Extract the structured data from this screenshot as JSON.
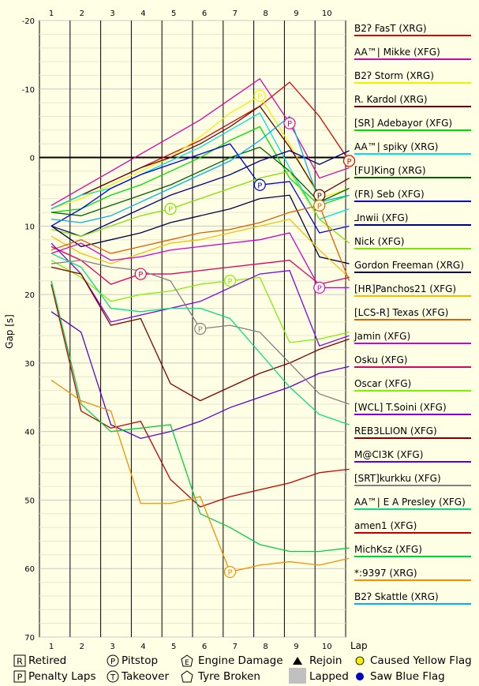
{
  "chart_data": {
    "type": "line",
    "ylabel": "Gap [s]",
    "xlabel": "Lap",
    "y_reversed": true,
    "ylim": [
      -20,
      70
    ],
    "y_ticks": [
      "-20",
      "-10",
      "0",
      "10",
      "20",
      "30",
      "40",
      "50",
      "60",
      "70"
    ],
    "x_ticks": [
      "1",
      "2",
      "3",
      "4",
      "5",
      "6",
      "7",
      "8",
      "9",
      "10"
    ],
    "grid": true,
    "legend_position": "right",
    "series": [
      {
        "name": "B2ʔ FasT (XRG)",
        "color": "#e00000",
        "values": [
          7.5,
          5.5,
          3.5,
          1.5,
          -0.5,
          -2.5,
          -5.0,
          -7.5,
          -11.0,
          -6.0,
          0.5
        ],
        "pitstop_laps": [
          10
        ]
      },
      {
        "name": "AA™| Mikke (XFG)",
        "color": "#e000a0",
        "values": [
          7.0,
          4.5,
          2.0,
          -0.5,
          -3.0,
          -5.5,
          -8.5,
          -11.5,
          -5.0,
          3.0,
          1.5
        ],
        "pitstop_laps": [
          8
        ]
      },
      {
        "name": "B2ʔ Storm (XRG)",
        "color": "#f0f000",
        "values": [
          7.5,
          6.0,
          4.0,
          2.0,
          0.0,
          -3.0,
          -6.5,
          -9.0,
          -2.0,
          6.0,
          4.5
        ],
        "pitstop_laps": [
          7
        ]
      },
      {
        "name": "R. Kardol (XRG)",
        "color": "#600000",
        "values": [
          7.5,
          5.5,
          3.5,
          1.5,
          0.0,
          -2.0,
          -4.5,
          -7.5,
          -1.5,
          5.5,
          3.0
        ],
        "pitstop_laps": [
          9
        ]
      },
      {
        "name": "[SR] Adebayor (XFG)",
        "color": "#00e000",
        "values": [
          8.0,
          7.5,
          5.5,
          4.0,
          2.0,
          0.0,
          -2.5,
          -4.5,
          3.0,
          7.0,
          5.5
        ],
        "pitstop_laps": []
      },
      {
        "name": "AA™| spiky (XRG)",
        "color": "#00e0e0",
        "values": [
          7.5,
          5.5,
          4.5,
          2.5,
          0.5,
          -1.5,
          -4.0,
          -6.5,
          1.5,
          9.0,
          7.5
        ],
        "pitstop_laps": []
      },
      {
        "name": "[FU]King (XRG)",
        "color": "#006000",
        "values": [
          8.0,
          8.5,
          7.0,
          5.5,
          4.0,
          2.0,
          0.0,
          -1.5,
          2.0,
          6.5,
          4.5
        ],
        "pitstop_laps": []
      },
      {
        "name": "(FR) Seb (XFG)",
        "color": "#0000e0",
        "values": [
          10.0,
          7.5,
          4.5,
          2.5,
          1.0,
          -0.5,
          -2.0,
          4.0,
          3.5,
          11.0,
          10.0
        ],
        "pitstop_laps": [
          7
        ]
      },
      {
        "name": "⅃nwii (XFG)",
        "color": "#000080",
        "values": [
          10.0,
          11.5,
          9.5,
          7.5,
          5.5,
          4.0,
          2.5,
          0.5,
          -1.0,
          1.0,
          -1.0
        ],
        "pitstop_laps": []
      },
      {
        "name": "Nick (XFG)",
        "color": "#80e000",
        "values": [
          10.5,
          11.5,
          10.0,
          8.5,
          7.5,
          6.0,
          4.5,
          3.0,
          2.0,
          9.0,
          12.5
        ],
        "pitstop_laps": [
          4
        ]
      },
      {
        "name": "Gordon Freeman (XRG)",
        "color": "#000040",
        "values": [
          10.0,
          13.0,
          12.0,
          11.0,
          9.5,
          8.5,
          7.5,
          6.0,
          5.5,
          14.5,
          15.5
        ],
        "pitstop_laps": []
      },
      {
        "name": "[HR]Panchos21 (XFG)",
        "color": "#f0c000",
        "values": [
          11.5,
          14.0,
          15.5,
          14.0,
          12.5,
          12.0,
          11.0,
          10.0,
          9.0,
          13.5,
          17.5
        ],
        "pitstop_laps": []
      },
      {
        "name": "[LCS-R] Texas (XFG)",
        "color": "#e06000",
        "values": [
          13.5,
          12.0,
          14.0,
          13.0,
          12.0,
          11.0,
          10.5,
          9.5,
          8.0,
          7.0,
          18.0
        ],
        "pitstop_laps": [
          9
        ]
      },
      {
        "name": "Jamin (XFG)",
        "color": "#d000d0",
        "values": [
          14.0,
          12.5,
          15.0,
          14.5,
          13.5,
          13.0,
          12.5,
          12.0,
          11.0,
          19.0,
          19.0
        ],
        "pitstop_laps": [
          9
        ]
      },
      {
        "name": "Osku (XFG)",
        "color": "#e00060",
        "values": [
          13.0,
          15.0,
          18.5,
          17.0,
          17.0,
          16.5,
          16.0,
          15.5,
          15.0,
          18.5,
          17.5
        ],
        "pitstop_laps": [
          3
        ]
      },
      {
        "name": "Oscar (XFG)",
        "color": "#80f000",
        "values": [
          15.0,
          17.5,
          21.0,
          20.0,
          19.5,
          18.5,
          18.0,
          17.5,
          27.0,
          26.5,
          25.5
        ],
        "pitstop_laps": [
          6
        ]
      },
      {
        "name": "[WCL] T.Soini (XFG)",
        "color": "#8000e0",
        "values": [
          12.5,
          17.0,
          24.0,
          23.0,
          22.0,
          21.0,
          19.0,
          17.0,
          16.5,
          27.5,
          26.0
        ],
        "pitstop_laps": []
      },
      {
        "name": "REB3LLION (XFG)",
        "color": "#800000",
        "values": [
          16.0,
          17.0,
          24.5,
          23.5,
          33.0,
          35.5,
          33.5,
          31.5,
          30.0,
          28.0,
          26.5
        ],
        "pitstop_laps": []
      },
      {
        "name": "M@CI3K (XFG)",
        "color": "#6000c0",
        "values": [
          22.5,
          25.5,
          39.0,
          41.0,
          40.0,
          38.5,
          36.5,
          35.0,
          33.5,
          31.5,
          30.5
        ],
        "pitstop_laps": []
      },
      {
        "name": "[SRT]kurkku (XFG)",
        "color": "#808080",
        "values": [
          15.5,
          15.0,
          16.0,
          16.5,
          18.0,
          25.0,
          24.5,
          25.5,
          30.0,
          34.5,
          36.0
        ],
        "pitstop_laps": [
          5
        ]
      },
      {
        "name": "AA™| E A Presley (XFG)",
        "color": "#00e080",
        "values": [
          14.0,
          16.0,
          22.0,
          22.5,
          22.0,
          22.0,
          23.5,
          28.5,
          33.5,
          37.5,
          39.0
        ],
        "pitstop_laps": []
      },
      {
        "name": "amen1 (XFG)",
        "color": "#c00000",
        "values": [
          18.5,
          37.0,
          39.5,
          38.5,
          47.0,
          51.0,
          49.5,
          48.5,
          47.5,
          46.0,
          45.5
        ],
        "pitstop_laps": []
      },
      {
        "name": "MichKsz (XFG)",
        "color": "#00d040",
        "values": [
          18.0,
          36.0,
          40.0,
          39.5,
          39.0,
          52.0,
          54.0,
          56.5,
          57.5,
          57.5,
          57.0
        ],
        "pitstop_laps": []
      },
      {
        "name": "*:9397 (XRG)",
        "color": "#f09000",
        "values": [
          32.5,
          35.5,
          37.0,
          50.5,
          50.5,
          49.5,
          60.5,
          59.5,
          59.0,
          59.5,
          58.5
        ],
        "pitstop_laps": [
          6
        ]
      },
      {
        "name": "B2ʔ Skattle (XRG)",
        "color": "#00b0f0",
        "values": [
          9.0,
          9.5,
          8.5,
          6.5,
          4.5,
          2.5,
          0.5,
          -2.5,
          -6.0,
          6.5,
          5.5
        ],
        "pitstop_laps": []
      }
    ]
  },
  "key": {
    "retired_label": "Retired",
    "retired_icon": "R",
    "pitstop_label": "Pitstop",
    "pitstop_icon": "P",
    "engine_label": "Engine Damage",
    "engine_icon": "E",
    "rejoin_label": "Rejoin",
    "yellow_label": "Caused Yellow Flag",
    "penalty_label": "Penalty Laps",
    "penalty_icon": "P",
    "takeover_label": "Takeover",
    "takeover_icon": "T",
    "tyre_label": "Tyre Broken",
    "lapped_label": "Lapped",
    "blue_label": "Saw Blue Flag",
    "yellow_color": "#f0f000",
    "blue_color": "#0000c0",
    "lapped_color": "#c0c0c0"
  }
}
